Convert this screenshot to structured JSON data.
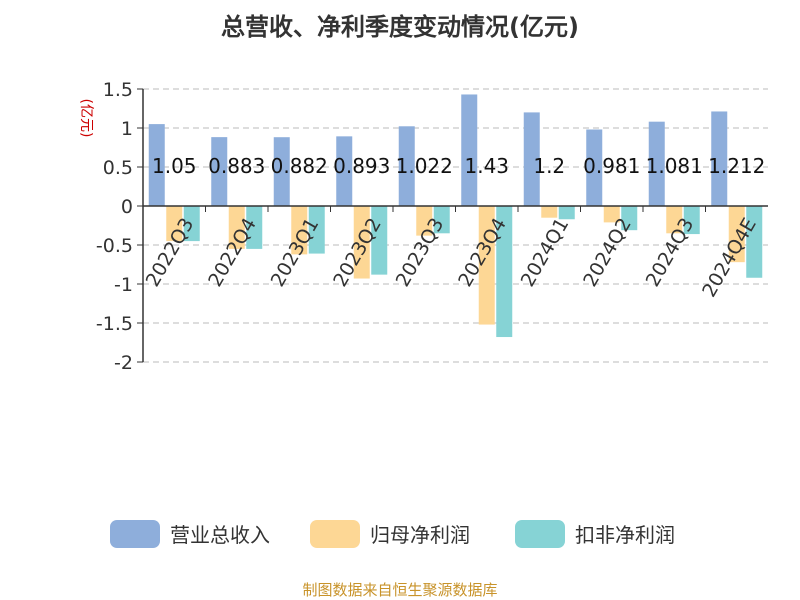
{
  "chart_data": {
    "type": "bar",
    "title": "总营收、净利季度变动情况(亿元)",
    "unit_label": "(亿元)",
    "categories": [
      "2022Q3",
      "2022Q4",
      "2023Q1",
      "2023Q2",
      "2023Q3",
      "2023Q4",
      "2024Q1",
      "2024Q2",
      "2024Q3",
      "2024Q4E"
    ],
    "series": [
      {
        "name": "营业总收入",
        "color": "#8eaedb",
        "values": [
          1.05,
          0.883,
          0.882,
          0.893,
          1.022,
          1.43,
          1.2,
          0.981,
          1.081,
          1.212
        ]
      },
      {
        "name": "归母净利润",
        "color": "#fdd795",
        "values": [
          -0.45,
          -0.55,
          -0.62,
          -0.93,
          -0.38,
          -1.52,
          -0.15,
          -0.21,
          -0.35,
          -0.72
        ]
      },
      {
        "name": "扣非净利润",
        "color": "#86d3d5",
        "values": [
          -0.45,
          -0.55,
          -0.61,
          -0.88,
          -0.35,
          -1.68,
          -0.17,
          -0.31,
          -0.36,
          -0.92
        ]
      }
    ],
    "data_labels": [
      "1.05",
      "0.883",
      "0.882",
      "0.893",
      "1.022",
      "1.43",
      "1.2",
      "0.981",
      "1.081",
      "1.212"
    ],
    "ylim": [
      -2,
      1.5
    ],
    "yticks": [
      "1.5",
      "1",
      "0.5",
      "0",
      "-0.5",
      "-1",
      "-1.5",
      "-2"
    ],
    "ytick_values": [
      1.5,
      1,
      0.5,
      0,
      -0.5,
      -1,
      -1.5,
      -2
    ],
    "grid": true,
    "legend_position": "bottom"
  },
  "source": "制图数据来自恒生聚源数据库"
}
